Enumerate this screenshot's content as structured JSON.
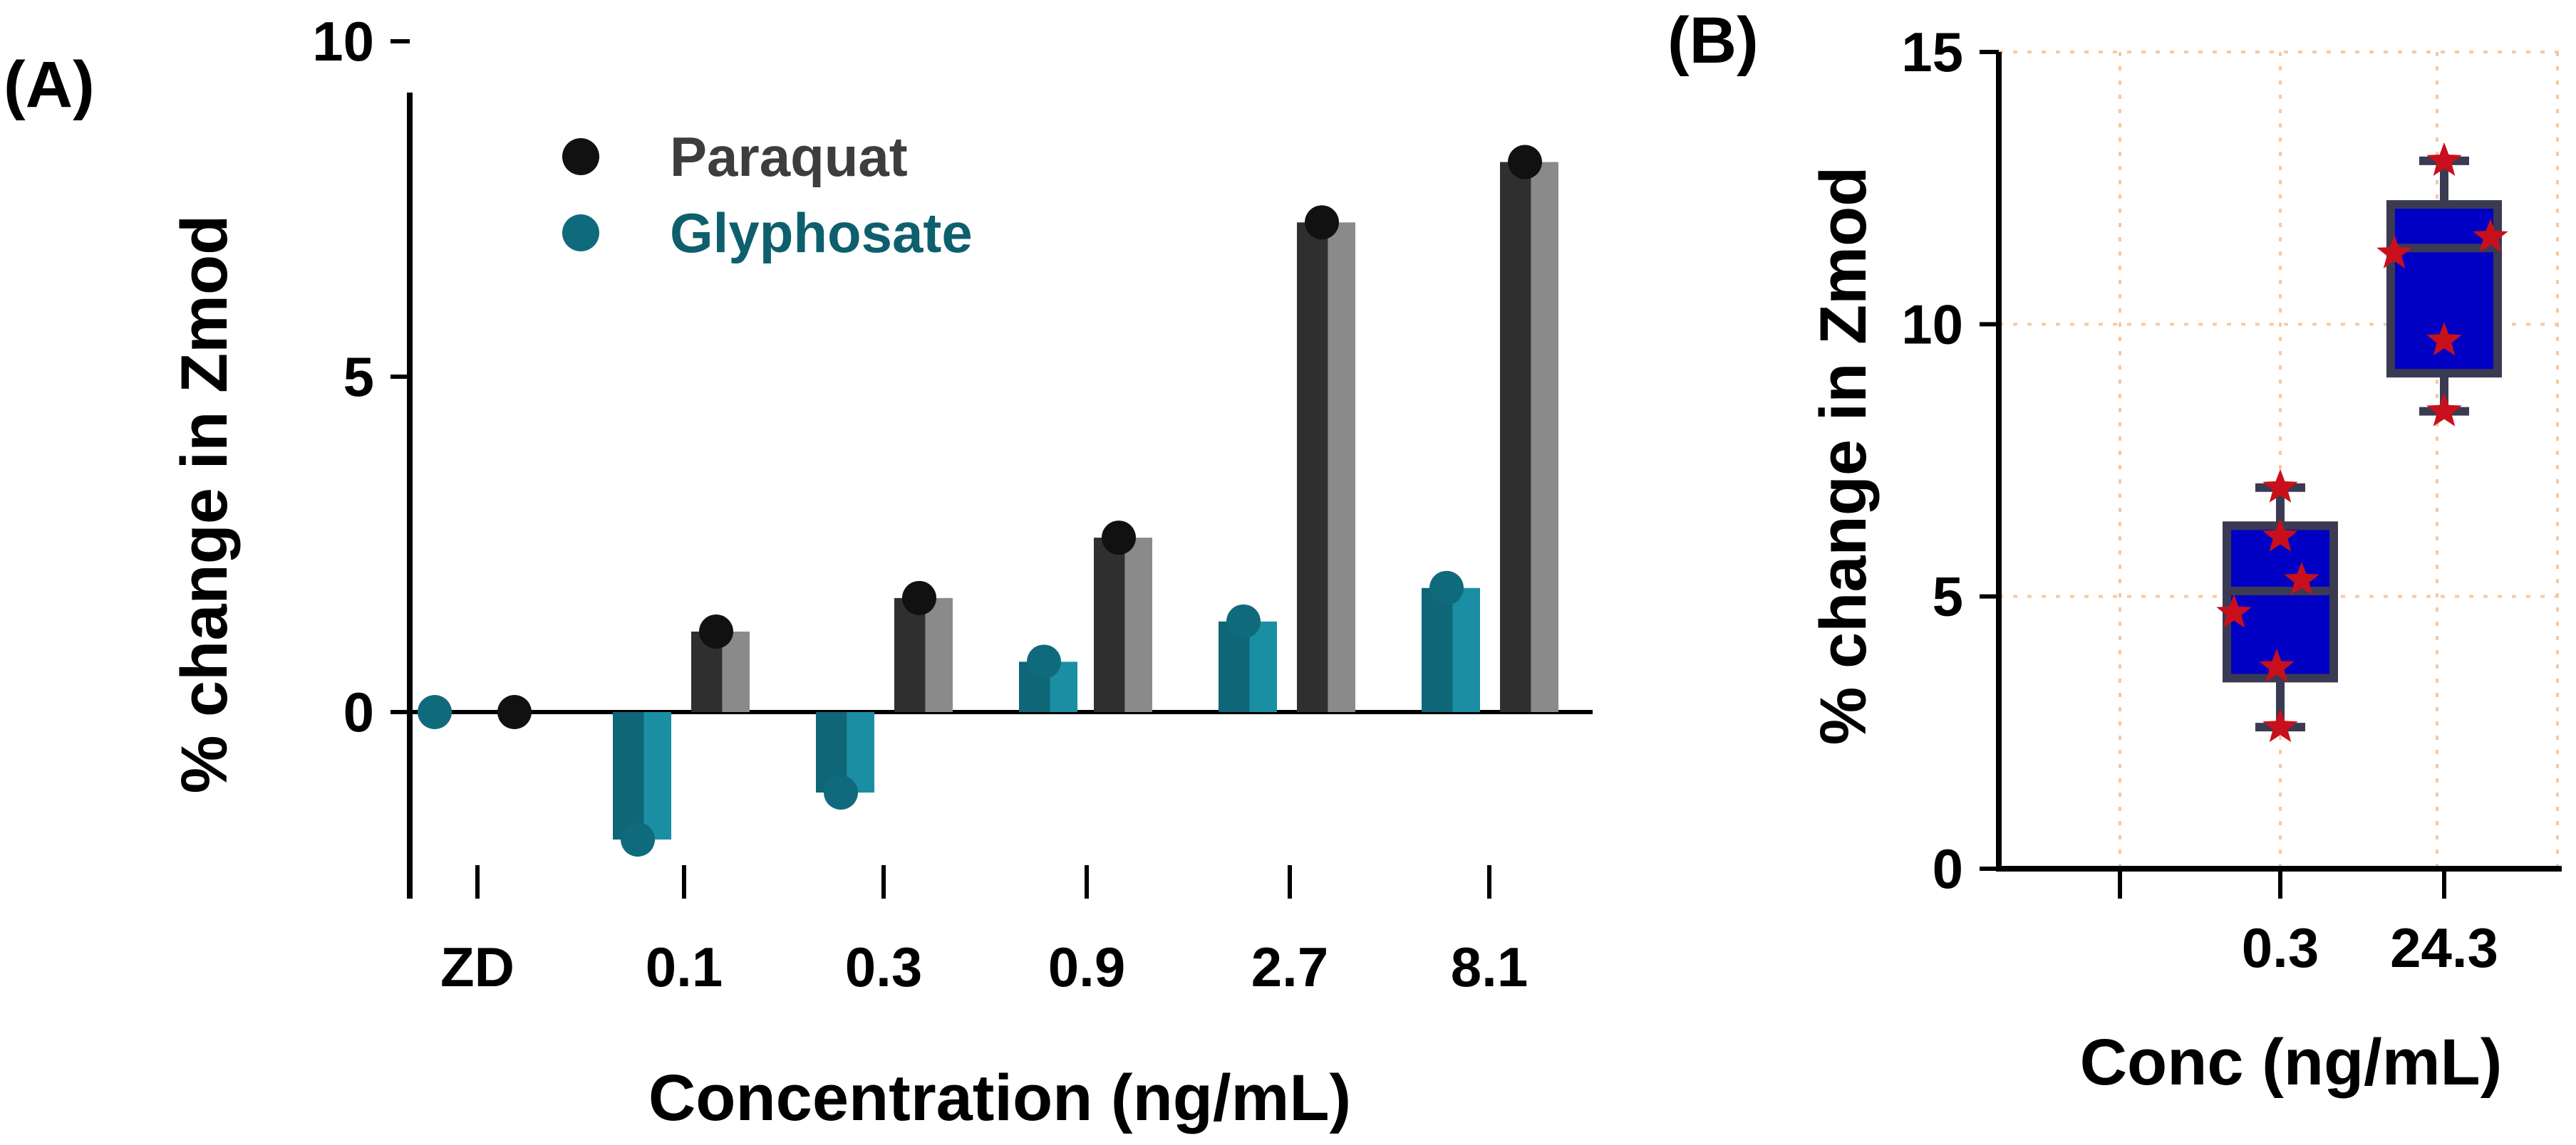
{
  "colors": {
    "paraquat_dot": "#111111",
    "paraquat_bar_back": "#8a8a8a",
    "paraquat_bar_front": "#2f2f2f",
    "glyphosate_dot": "#0f6b7c",
    "glyphosate_bar_back": "#1a8fa3",
    "glyphosate_bar_front": "#0e6677",
    "legend_paraquat_text": "#3d3d3d",
    "legend_glyphosate_text": "#0e5f6e",
    "box_fill": "#0000c4",
    "box_edge": "#3a3a52",
    "star": "#c8101c",
    "grid": "#f5c9a4"
  },
  "chart_data": [
    {
      "panel_label": "(A)",
      "type": "bar",
      "xlabel": "Concentration (ng/mL)",
      "ylabel": "% change in Zmod",
      "ylim": [
        -3,
        10
      ],
      "yticks": [
        "0",
        "5",
        "10"
      ],
      "ytick_values": [
        0,
        5,
        10
      ],
      "categories": [
        "ZD",
        "0.1",
        "0.3",
        "0.9",
        "2.7",
        "8.1"
      ],
      "legend": [
        "Paraquat",
        "Glyphosate"
      ],
      "series": [
        {
          "name": "Paraquat",
          "values": [
            0,
            1.2,
            1.7,
            2.6,
            7.3,
            8.2
          ]
        },
        {
          "name": "Glyphosate",
          "values": [
            0,
            -1.9,
            -1.2,
            0.75,
            1.35,
            1.85
          ]
        }
      ]
    },
    {
      "panel_label": "(B)",
      "type": "box",
      "xlabel": "Conc (ng/mL)",
      "ylabel": "% change in Zmod",
      "ylim": [
        0,
        15
      ],
      "yticks": [
        "0",
        "5",
        "10",
        "15"
      ],
      "ytick_values": [
        0,
        5,
        10,
        15
      ],
      "categories": [
        "0.3",
        "24.3"
      ],
      "grid": true,
      "boxes": [
        {
          "name": "0.3",
          "min": 2.6,
          "q1": 3.5,
          "median": 5.1,
          "q3": 6.3,
          "max": 7.0,
          "points": [
            7.0,
            6.1,
            5.3,
            4.7,
            3.7,
            2.6
          ]
        },
        {
          "name": "24.3",
          "min": 8.4,
          "q1": 9.1,
          "median": 11.4,
          "q3": 12.2,
          "max": 13.0,
          "points": [
            13.0,
            11.6,
            11.3,
            9.7,
            8.4
          ]
        }
      ]
    }
  ]
}
